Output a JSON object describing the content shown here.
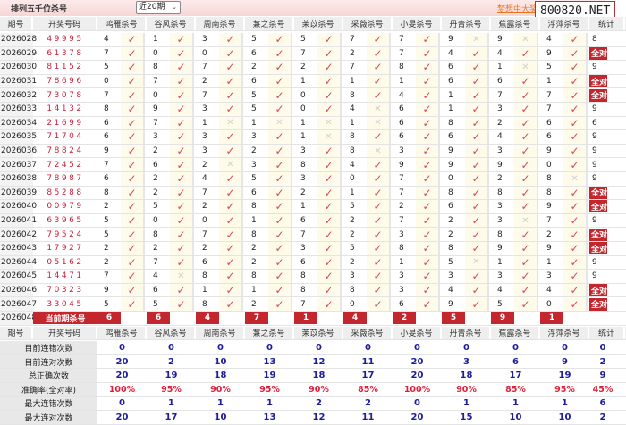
{
  "header": {
    "title": "排列五千位杀号",
    "period_select": "近20期",
    "link": "梦想中大奖",
    "watermark": "800820.NET"
  },
  "columns": [
    "期号",
    "开奖号码",
    "鸿雁杀号",
    "谷风杀号",
    "周南杀号",
    "蒹之杀号",
    "茉苡杀号",
    "采薇杀号",
    "小旻杀号",
    "丹青杀号",
    "蕉露杀号",
    "浮萍杀号",
    "统计"
  ],
  "rows": [
    {
      "issue": "2026028",
      "draw": "49995",
      "kills": [
        4,
        1,
        3,
        5,
        5,
        7,
        7,
        9,
        9,
        4
      ],
      "hits": [
        1,
        1,
        1,
        1,
        1,
        1,
        1,
        0,
        0,
        1
      ],
      "stat": "8"
    },
    {
      "issue": "2026029",
      "draw": "61378",
      "kills": [
        7,
        0,
        0,
        6,
        7,
        2,
        7,
        4,
        4,
        9
      ],
      "hits": [
        1,
        1,
        1,
        1,
        1,
        1,
        1,
        1,
        1,
        1
      ],
      "stat": "全对"
    },
    {
      "issue": "2026030",
      "draw": "81152",
      "kills": [
        5,
        8,
        7,
        2,
        2,
        7,
        8,
        6,
        1,
        5
      ],
      "hits": [
        1,
        1,
        1,
        1,
        1,
        1,
        1,
        1,
        0,
        1
      ],
      "stat": "9"
    },
    {
      "issue": "2026031",
      "draw": "78696",
      "kills": [
        0,
        7,
        2,
        6,
        1,
        1,
        1,
        6,
        6,
        1
      ],
      "hits": [
        1,
        1,
        1,
        1,
        1,
        1,
        1,
        1,
        1,
        1
      ],
      "stat": "全对"
    },
    {
      "issue": "2026032",
      "draw": "73078",
      "kills": [
        7,
        0,
        7,
        5,
        0,
        8,
        4,
        1,
        7,
        7
      ],
      "hits": [
        1,
        1,
        1,
        1,
        1,
        1,
        1,
        1,
        1,
        1
      ],
      "stat": "全对"
    },
    {
      "issue": "2026033",
      "draw": "14132",
      "kills": [
        8,
        9,
        3,
        5,
        0,
        4,
        6,
        1,
        3,
        7
      ],
      "hits": [
        1,
        1,
        1,
        1,
        1,
        0,
        1,
        1,
        1,
        1
      ],
      "stat": "9"
    },
    {
      "issue": "2026034",
      "draw": "21699",
      "kills": [
        6,
        7,
        1,
        1,
        1,
        1,
        6,
        8,
        2,
        6
      ],
      "hits": [
        1,
        1,
        0,
        0,
        0,
        0,
        1,
        1,
        1,
        1
      ],
      "stat": "6"
    },
    {
      "issue": "2026035",
      "draw": "71704",
      "kills": [
        6,
        3,
        3,
        3,
        1,
        8,
        6,
        6,
        4,
        6
      ],
      "hits": [
        1,
        1,
        1,
        1,
        0,
        1,
        1,
        1,
        1,
        1
      ],
      "stat": "9"
    },
    {
      "issue": "2026036",
      "draw": "78824",
      "kills": [
        9,
        2,
        3,
        2,
        3,
        8,
        3,
        9,
        3,
        9
      ],
      "hits": [
        1,
        1,
        1,
        1,
        1,
        0,
        1,
        1,
        1,
        1
      ],
      "stat": "9"
    },
    {
      "issue": "2026037",
      "draw": "72452",
      "kills": [
        7,
        6,
        2,
        3,
        8,
        4,
        9,
        9,
        9,
        0
      ],
      "hits": [
        1,
        1,
        0,
        1,
        1,
        1,
        1,
        1,
        1,
        1
      ],
      "stat": "9"
    },
    {
      "issue": "2026038",
      "draw": "78987",
      "kills": [
        6,
        2,
        4,
        5,
        3,
        0,
        7,
        0,
        2,
        8
      ],
      "hits": [
        1,
        1,
        1,
        1,
        1,
        1,
        1,
        1,
        1,
        0
      ],
      "stat": "9"
    },
    {
      "issue": "2026039",
      "draw": "85288",
      "kills": [
        8,
        2,
        7,
        6,
        2,
        1,
        7,
        8,
        8,
        8
      ],
      "hits": [
        1,
        1,
        1,
        1,
        1,
        1,
        1,
        1,
        1,
        1
      ],
      "stat": "全对"
    },
    {
      "issue": "2026040",
      "draw": "00979",
      "kills": [
        2,
        5,
        2,
        8,
        1,
        5,
        2,
        6,
        3,
        9
      ],
      "hits": [
        1,
        1,
        1,
        1,
        1,
        1,
        1,
        1,
        1,
        1
      ],
      "stat": "全对"
    },
    {
      "issue": "2026041",
      "draw": "63965",
      "kills": [
        5,
        0,
        0,
        1,
        6,
        2,
        7,
        2,
        3,
        7
      ],
      "hits": [
        1,
        1,
        1,
        1,
        1,
        1,
        1,
        1,
        0,
        1
      ],
      "stat": "9"
    },
    {
      "issue": "2026042",
      "draw": "79524",
      "kills": [
        5,
        8,
        7,
        8,
        7,
        2,
        3,
        2,
        8,
        2
      ],
      "hits": [
        1,
        1,
        1,
        1,
        1,
        1,
        1,
        1,
        1,
        1
      ],
      "stat": "全对"
    },
    {
      "issue": "2026043",
      "draw": "17927",
      "kills": [
        2,
        2,
        2,
        2,
        3,
        5,
        8,
        8,
        9,
        9
      ],
      "hits": [
        1,
        1,
        1,
        1,
        1,
        1,
        1,
        1,
        1,
        1
      ],
      "stat": "全对"
    },
    {
      "issue": "2026044",
      "draw": "05162",
      "kills": [
        2,
        7,
        6,
        2,
        6,
        2,
        1,
        5,
        1,
        1
      ],
      "hits": [
        1,
        1,
        1,
        1,
        1,
        1,
        1,
        0,
        1,
        1
      ],
      "stat": "9"
    },
    {
      "issue": "2026045",
      "draw": "14471",
      "kills": [
        7,
        4,
        8,
        8,
        8,
        3,
        3,
        3,
        3,
        3
      ],
      "hits": [
        1,
        0,
        1,
        1,
        1,
        1,
        1,
        1,
        1,
        1
      ],
      "stat": "9"
    },
    {
      "issue": "2026046",
      "draw": "70323",
      "kills": [
        9,
        6,
        1,
        1,
        8,
        8,
        3,
        4,
        4,
        4
      ],
      "hits": [
        1,
        1,
        1,
        1,
        1,
        1,
        1,
        1,
        1,
        1
      ],
      "stat": "全对"
    },
    {
      "issue": "2026047",
      "draw": "33045",
      "kills": [
        5,
        5,
        8,
        2,
        7,
        0,
        6,
        9,
        5,
        0
      ],
      "hits": [
        1,
        1,
        1,
        1,
        1,
        1,
        1,
        1,
        1,
        1
      ],
      "stat": "全对"
    }
  ],
  "current": {
    "issue": "2026048",
    "label": "当前期杀号",
    "kills": [
      6,
      6,
      4,
      7,
      1,
      4,
      2,
      5,
      9,
      1
    ]
  },
  "stats": [
    {
      "label": "目前连错次数",
      "values": [
        "0",
        "0",
        "0",
        "0",
        "0",
        "0",
        "0",
        "0",
        "0",
        "0",
        "0"
      ]
    },
    {
      "label": "目前连对次数",
      "values": [
        "20",
        "2",
        "10",
        "13",
        "12",
        "11",
        "20",
        "3",
        "6",
        "9",
        "2"
      ]
    },
    {
      "label": "总正确次数",
      "values": [
        "20",
        "19",
        "18",
        "19",
        "18",
        "17",
        "20",
        "18",
        "17",
        "19",
        "9"
      ]
    },
    {
      "label": "准确率(全对率)",
      "values": [
        "100%",
        "95%",
        "90%",
        "95%",
        "90%",
        "85%",
        "100%",
        "90%",
        "85%",
        "95%",
        "45%"
      ],
      "accent": true
    },
    {
      "label": "最大连错次数",
      "values": [
        "0",
        "1",
        "1",
        "1",
        "2",
        "2",
        "0",
        "1",
        "1",
        "1",
        "6"
      ]
    },
    {
      "label": "最大连对次数",
      "values": [
        "20",
        "17",
        "10",
        "13",
        "12",
        "11",
        "20",
        "15",
        "10",
        "10",
        "2"
      ]
    }
  ],
  "icons": {
    "hit": "check-icon",
    "miss": "cross-icon",
    "dropdown": "chevron-down-icon"
  },
  "colors": {
    "accent": "#c4262e",
    "draw": "#c8203a",
    "stat_value": "#1c1c9c",
    "rate": "#e0203a"
  }
}
